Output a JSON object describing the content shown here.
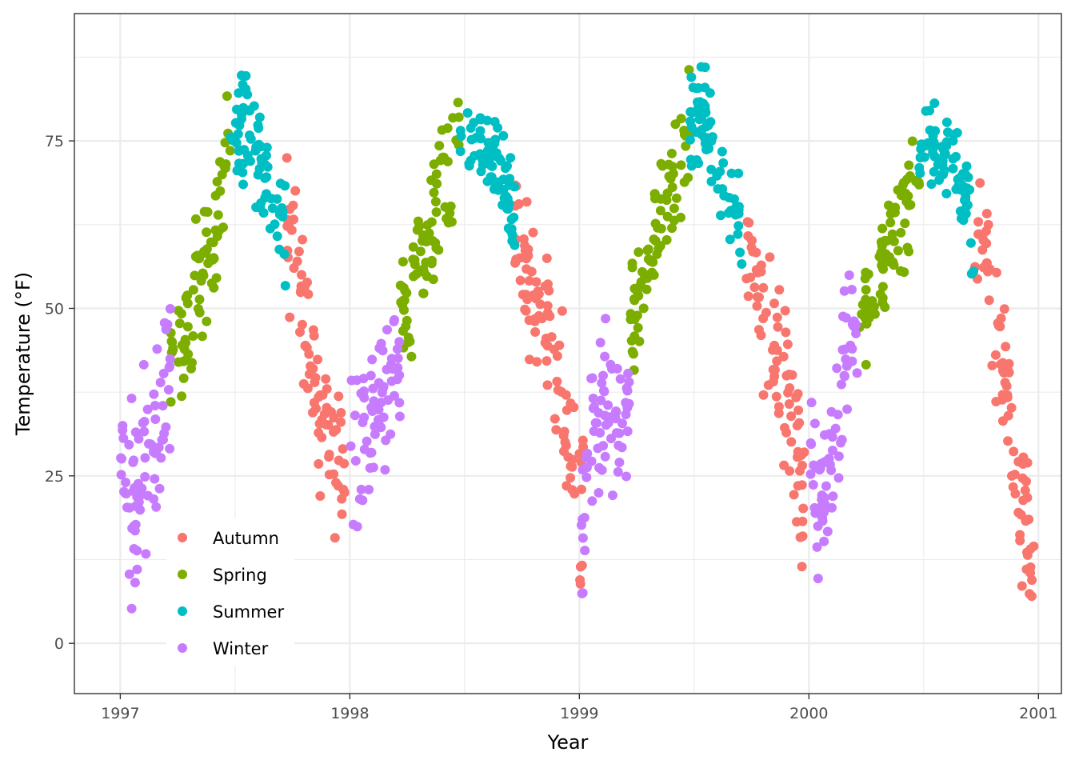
{
  "chart_data": {
    "type": "scatter",
    "xlabel": "Year",
    "ylabel": "Temperature (°F)",
    "xlim": [
      1996.8,
      2001.1
    ],
    "ylim": [
      -7.5,
      94
    ],
    "x_ticks": [
      1997,
      1998,
      1999,
      2000,
      2001
    ],
    "y_ticks": [
      0,
      25,
      50,
      75
    ],
    "grid": true,
    "legend_position": "bottom-left inside",
    "series": [
      {
        "name": "Autumn",
        "color": "#F8766D",
        "segments": [
          {
            "start": 1997.72,
            "end": 1997.98,
            "knots": [
              [
                1997.72,
                60
              ],
              [
                1997.76,
                66
              ],
              [
                1997.8,
                46
              ],
              [
                1997.84,
                40
              ],
              [
                1997.88,
                33
              ],
              [
                1997.92,
                30
              ],
              [
                1997.96,
                27
              ],
              [
                1997.99,
                25
              ]
            ],
            "spread": 8,
            "n": 78,
            "seed": 11
          },
          {
            "start": 1998.72,
            "end": 1998.98,
            "knots": [
              [
                1998.72,
                60
              ],
              [
                1998.76,
                56
              ],
              [
                1998.8,
                50
              ],
              [
                1998.84,
                50
              ],
              [
                1998.88,
                46
              ],
              [
                1998.92,
                38
              ],
              [
                1998.96,
                30
              ],
              [
                1998.99,
                22
              ]
            ],
            "spread": 8,
            "n": 78,
            "seed": 12
          },
          {
            "start": 1999.72,
            "end": 1999.98,
            "knots": [
              [
                1999.72,
                60
              ],
              [
                1999.76,
                58
              ],
              [
                1999.8,
                50
              ],
              [
                1999.84,
                46
              ],
              [
                1999.88,
                41
              ],
              [
                1999.92,
                34
              ],
              [
                1999.96,
                27
              ],
              [
                1999.99,
                20
              ]
            ],
            "spread": 8,
            "n": 78,
            "seed": 13
          },
          {
            "start": 2000.72,
            "end": 2000.99,
            "knots": [
              [
                2000.72,
                62
              ],
              [
                2000.76,
                60
              ],
              [
                2000.8,
                52
              ],
              [
                2000.84,
                42
              ],
              [
                2000.88,
                32
              ],
              [
                2000.92,
                24
              ],
              [
                2000.96,
                15
              ],
              [
                2000.99,
                8
              ]
            ],
            "spread": 8,
            "n": 78,
            "seed": 14
          },
          {
            "start": 1999.0,
            "end": 1999.02,
            "knots": [
              [
                1999.0,
                15
              ],
              [
                1999.02,
                25
              ]
            ],
            "spread": 12,
            "n": 10,
            "seed": 15
          }
        ]
      },
      {
        "name": "Spring",
        "color": "#7CAE00",
        "segments": [
          {
            "start": 1997.22,
            "end": 1997.48,
            "knots": [
              [
                1997.22,
                42
              ],
              [
                1997.28,
                48
              ],
              [
                1997.34,
                54
              ],
              [
                1997.4,
                60
              ],
              [
                1997.44,
                66
              ],
              [
                1997.48,
                76
              ]
            ],
            "spread": 7,
            "n": 76,
            "seed": 21
          },
          {
            "start": 1998.22,
            "end": 1998.48,
            "knots": [
              [
                1998.22,
                48
              ],
              [
                1998.28,
                55
              ],
              [
                1998.34,
                60
              ],
              [
                1998.4,
                68
              ],
              [
                1998.44,
                72
              ],
              [
                1998.48,
                77
              ]
            ],
            "spread": 7,
            "n": 76,
            "seed": 22
          },
          {
            "start": 1999.22,
            "end": 1999.48,
            "knots": [
              [
                1999.22,
                48
              ],
              [
                1999.28,
                55
              ],
              [
                1999.34,
                62
              ],
              [
                1999.4,
                68
              ],
              [
                1999.44,
                72
              ],
              [
                1999.48,
                76
              ]
            ],
            "spread": 7,
            "n": 76,
            "seed": 23
          },
          {
            "start": 2000.22,
            "end": 2000.48,
            "knots": [
              [
                2000.22,
                45
              ],
              [
                2000.28,
                52
              ],
              [
                2000.34,
                58
              ],
              [
                2000.4,
                64
              ],
              [
                2000.44,
                68
              ],
              [
                2000.48,
                72
              ]
            ],
            "spread": 7,
            "n": 76,
            "seed": 24
          }
        ]
      },
      {
        "name": "Summer",
        "color": "#00BFC4",
        "segments": [
          {
            "start": 1997.48,
            "end": 1997.72,
            "knots": [
              [
                1997.48,
                74
              ],
              [
                1997.54,
                78
              ],
              [
                1997.6,
                72
              ],
              [
                1997.66,
                68
              ],
              [
                1997.72,
                62
              ]
            ],
            "spread": 6,
            "n": 72,
            "seed": 31
          },
          {
            "start": 1998.48,
            "end": 1998.72,
            "knots": [
              [
                1998.48,
                76
              ],
              [
                1998.54,
                76
              ],
              [
                1998.6,
                74
              ],
              [
                1998.66,
                71
              ],
              [
                1998.72,
                64
              ]
            ],
            "spread": 5,
            "n": 72,
            "seed": 32
          },
          {
            "start": 1999.48,
            "end": 1999.72,
            "knots": [
              [
                1999.48,
                77
              ],
              [
                1999.54,
                80
              ],
              [
                1999.6,
                72
              ],
              [
                1999.66,
                67
              ],
              [
                1999.72,
                58
              ]
            ],
            "spread": 6,
            "n": 72,
            "seed": 33
          },
          {
            "start": 2000.48,
            "end": 2000.72,
            "knots": [
              [
                2000.48,
                72
              ],
              [
                2000.54,
                74
              ],
              [
                2000.6,
                73
              ],
              [
                2000.66,
                70
              ],
              [
                2000.72,
                60
              ]
            ],
            "spread": 5,
            "n": 72,
            "seed": 34
          }
        ]
      },
      {
        "name": "Winter",
        "color": "#C77CFF",
        "segments": [
          {
            "start": 1997.0,
            "end": 1997.22,
            "knots": [
              [
                1997.0,
                30
              ],
              [
                1997.04,
                18
              ],
              [
                1997.08,
                22
              ],
              [
                1997.12,
                28
              ],
              [
                1997.16,
                34
              ],
              [
                1997.22,
                42
              ]
            ],
            "spread": 10,
            "n": 78,
            "seed": 41
          },
          {
            "start": 1998.0,
            "end": 1998.22,
            "knots": [
              [
                1998.0,
                30
              ],
              [
                1998.04,
                25
              ],
              [
                1998.08,
                32
              ],
              [
                1998.12,
                38
              ],
              [
                1998.16,
                36
              ],
              [
                1998.22,
                42
              ]
            ],
            "spread": 8,
            "n": 68,
            "seed": 42
          },
          {
            "start": 1999.0,
            "end": 1999.22,
            "knots": [
              [
                1999.0,
                12
              ],
              [
                1999.04,
                28
              ],
              [
                1999.08,
                32
              ],
              [
                1999.12,
                36
              ],
              [
                1999.16,
                32
              ],
              [
                1999.22,
                40
              ]
            ],
            "spread": 8,
            "n": 70,
            "seed": 43
          },
          {
            "start": 2000.0,
            "end": 2000.22,
            "knots": [
              [
                2000.0,
                32
              ],
              [
                2000.04,
                18
              ],
              [
                2000.08,
                24
              ],
              [
                2000.12,
                32
              ],
              [
                2000.16,
                42
              ],
              [
                2000.22,
                48
              ]
            ],
            "spread": 8,
            "n": 70,
            "seed": 44
          }
        ]
      }
    ]
  }
}
